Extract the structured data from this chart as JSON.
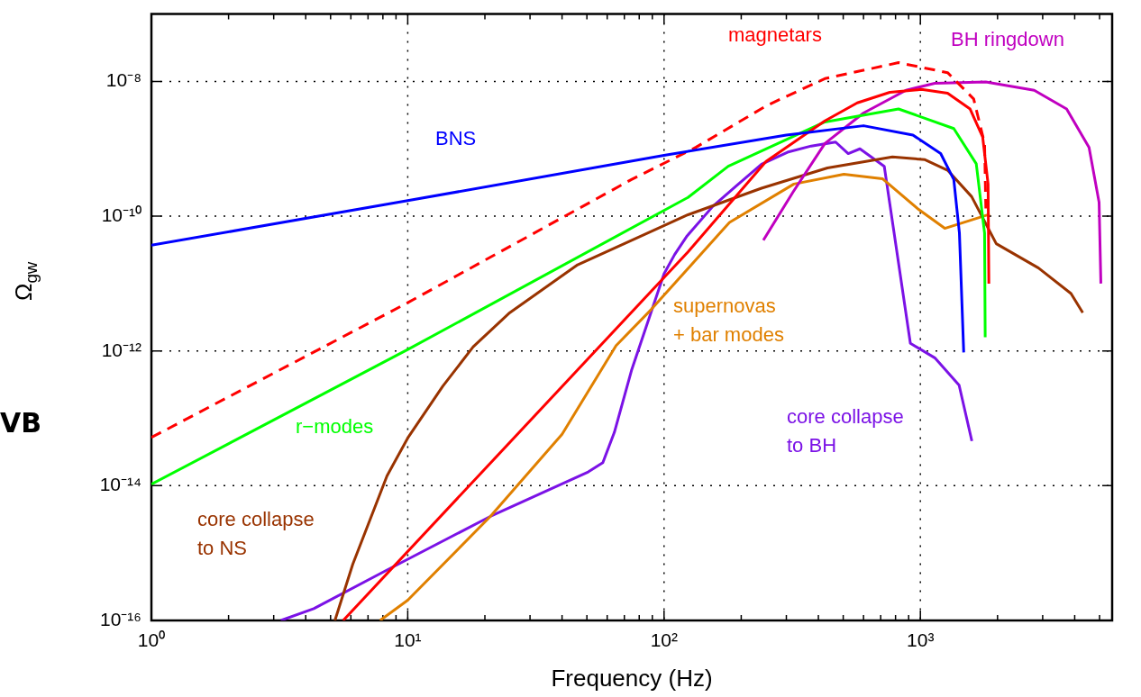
{
  "chart_data": {
    "type": "line",
    "xlabel": "Frequency (Hz)",
    "ylabel": "Ω$_{gw}$",
    "log": "xy",
    "grid": true,
    "marker": "none",
    "legend": false,
    "xlim": [
      1,
      5600
    ],
    "ylim": [
      1e-16,
      1e-07
    ],
    "xticks": [
      {
        "value": 1,
        "label": "10⁰"
      },
      {
        "value": 2,
        "label": null
      },
      {
        "value": 3,
        "label": null
      },
      {
        "value": 4,
        "label": null
      },
      {
        "value": 5,
        "label": null
      },
      {
        "value": 6,
        "label": null
      },
      {
        "value": 7,
        "label": null
      },
      {
        "value": 8,
        "label": null
      },
      {
        "value": 9,
        "label": null
      },
      {
        "value": 10,
        "label": "10¹"
      },
      {
        "value": 20,
        "label": null
      },
      {
        "value": 30,
        "label": null
      },
      {
        "value": 40,
        "label": null
      },
      {
        "value": 50,
        "label": null
      },
      {
        "value": 60,
        "label": null
      },
      {
        "value": 70,
        "label": null
      },
      {
        "value": 80,
        "label": null
      },
      {
        "value": 90,
        "label": null
      },
      {
        "value": 100,
        "label": "10²"
      },
      {
        "value": 200,
        "label": null
      },
      {
        "value": 300,
        "label": null
      },
      {
        "value": 400,
        "label": null
      },
      {
        "value": 500,
        "label": null
      },
      {
        "value": 600,
        "label": null
      },
      {
        "value": 700,
        "label": null
      },
      {
        "value": 800,
        "label": null
      },
      {
        "value": 900,
        "label": null
      },
      {
        "value": 1000,
        "label": "10³"
      },
      {
        "value": 2000,
        "label": null
      },
      {
        "value": 3000,
        "label": null
      },
      {
        "value": 4000,
        "label": null
      },
      {
        "value": 5000,
        "label": null
      }
    ],
    "yticks": [
      {
        "value": 1e-16,
        "label": "10⁻¹⁶"
      },
      {
        "value": 1e-14,
        "label": "10⁻¹⁴"
      },
      {
        "value": 1e-12,
        "label": "10⁻¹²"
      },
      {
        "value": 1e-10,
        "label": "10⁻¹⁰"
      },
      {
        "value": 1e-08,
        "label": "10⁻⁸"
      }
    ],
    "annotations": [
      "VB"
    ],
    "series": [
      {
        "name": "BNS",
        "color": "#0000ff",
        "x": [
          1,
          10,
          100,
          300,
          600,
          935,
          1200,
          1350,
          1420,
          1476
        ],
        "values": [
          3.7e-11,
          1.7e-10,
          8e-10,
          1.6e-09,
          2.2e-09,
          1.6e-09,
          8.5e-10,
          3.5e-10,
          5.6e-11,
          9.5e-13
        ]
      },
      {
        "color": "#ff0000",
        "line_style": "dashed",
        "x": [
          1,
          10,
          74.6,
          133,
          252,
          424,
          822,
          1277,
          1614,
          1780,
          1800
        ],
        "values": [
          5.2e-14,
          5.2e-12,
          3.5e-10,
          1.05e-09,
          4.4e-09,
          1.1e-08,
          1.9e-08,
          1.35e-08,
          5.5e-09,
          1.2e-09,
          1.3e-10
        ]
      },
      {
        "name": "magnetars",
        "color": "#ff0000",
        "x": [
          5.6,
          124,
          250,
          424,
          567,
          760,
          1010,
          1277,
          1563,
          1750,
          1837,
          1850
        ],
        "values": [
          1e-16,
          2.95e-11,
          6.5e-10,
          2.6e-09,
          4.8e-09,
          6.9e-09,
          7.6e-09,
          6.7e-09,
          3.9e-09,
          1.5e-09,
          3e-10,
          1e-11
        ]
      },
      {
        "name": "r−modes",
        "color": "#00ff00",
        "x": [
          1,
          10,
          124,
          178,
          424,
          822,
          1350,
          1652,
          1780,
          1790
        ],
        "values": [
          1.05e-14,
          1.05e-12,
          1.9e-10,
          5.5e-10,
          2.5e-09,
          3.9e-09,
          2e-09,
          6e-10,
          5.6e-11,
          1.6e-12
        ]
      },
      {
        "name": "BH ringdown",
        "color": "#c000c0",
        "x": [
          244,
          319,
          424,
          600,
          879,
          1138,
          1800,
          2780,
          3720,
          4550,
          4980,
          5060
        ],
        "values": [
          4.4e-11,
          2.3e-10,
          1.2e-09,
          3.4e-09,
          7.4e-09,
          9.4e-09,
          9.8e-09,
          7.4e-09,
          3.9e-09,
          1.05e-09,
          1.6e-10,
          1e-11
        ]
      },
      {
        "name": "core collapse to NS",
        "color": "#993300",
        "x": [
          5.2,
          6.1,
          8.3,
          10,
          13.7,
          18,
          24.8,
          46,
          124,
          240,
          434,
          778,
          1042,
          1277,
          1585,
          1977,
          2890,
          3870,
          4300
        ],
        "values": [
          1e-16,
          6.8e-16,
          1.4e-14,
          5.1e-14,
          3e-13,
          1.15e-12,
          3.6e-12,
          1.9e-11,
          1.05e-10,
          2.6e-10,
          5.2e-10,
          7.6e-10,
          6.9e-10,
          4.8e-10,
          1.95e-10,
          3.9e-11,
          1.7e-11,
          7.1e-12,
          3.7e-12
        ]
      },
      {
        "name": "supernovas + bar modes",
        "color": "#e08000",
        "x": [
          7.8,
          10,
          21,
          40,
          65,
          89,
          180,
          321,
          503,
          711,
          984,
          1245,
          1866
        ],
        "values": [
          1e-16,
          2e-16,
          3.5e-15,
          5.8e-14,
          1.2e-12,
          4.1e-12,
          8.1e-11,
          3e-10,
          4.2e-10,
          3.6e-10,
          1.26e-10,
          6.6e-11,
          1.07e-10
        ]
      },
      {
        "name": "core collapse to BH",
        "color": "#7b12e6",
        "x": [
          3.2,
          4.3,
          8.3,
          21,
          50.6,
          57.7,
          64,
          74.6,
          100,
          110,
          123,
          155,
          191,
          240,
          303,
          375,
          467,
          523,
          581,
          723,
          914,
          1138,
          1416,
          1588
        ],
        "values": [
          1e-16,
          1.5e-16,
          5.6e-16,
          3.5e-15,
          1.6e-14,
          2.2e-14,
          6.2e-14,
          5.1e-13,
          1.4e-11,
          2.7e-11,
          5.1e-11,
          1.4e-10,
          2.8e-10,
          5.9e-10,
          8.9e-10,
          1.1e-09,
          1.26e-09,
          8.5e-10,
          1e-09,
          5.5e-10,
          1.3e-12,
          7.9e-13,
          3.1e-13,
          4.6e-14
        ]
      }
    ]
  }
}
